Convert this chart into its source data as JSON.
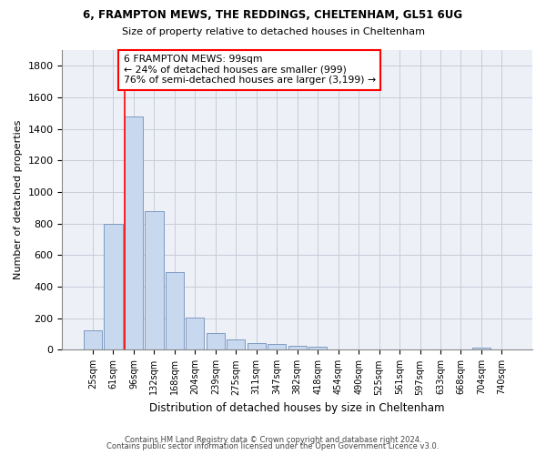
{
  "title1": "6, FRAMPTON MEWS, THE REDDINGS, CHELTENHAM, GL51 6UG",
  "title2": "Size of property relative to detached houses in Cheltenham",
  "xlabel": "Distribution of detached houses by size in Cheltenham",
  "ylabel": "Number of detached properties",
  "bar_color": "#c8d8ee",
  "bar_edge_color": "#7090b8",
  "categories": [
    "25sqm",
    "61sqm",
    "96sqm",
    "132sqm",
    "168sqm",
    "204sqm",
    "239sqm",
    "275sqm",
    "311sqm",
    "347sqm",
    "382sqm",
    "418sqm",
    "454sqm",
    "490sqm",
    "525sqm",
    "561sqm",
    "597sqm",
    "633sqm",
    "668sqm",
    "704sqm",
    "740sqm"
  ],
  "values": [
    125,
    800,
    1480,
    880,
    490,
    205,
    105,
    65,
    45,
    35,
    25,
    18,
    0,
    0,
    0,
    0,
    0,
    0,
    0,
    12,
    0
  ],
  "red_line_index": 2,
  "annotation_line1": "6 FRAMPTON MEWS: 99sqm",
  "annotation_line2": "← 24% of detached houses are smaller (999)",
  "annotation_line3": "76% of semi-detached houses are larger (3,199) →",
  "ylim": [
    0,
    1900
  ],
  "yticks": [
    0,
    200,
    400,
    600,
    800,
    1000,
    1200,
    1400,
    1600,
    1800
  ],
  "footer1": "Contains HM Land Registry data © Crown copyright and database right 2024.",
  "footer2": "Contains public sector information licensed under the Open Government Licence v3.0.",
  "background_color": "#eef0f8",
  "grid_color": "#c8ccd8"
}
